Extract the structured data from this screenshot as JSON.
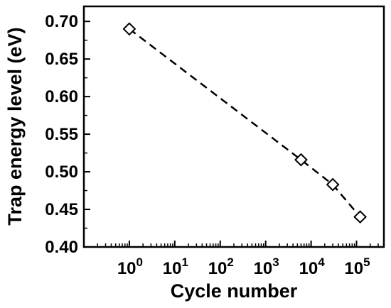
{
  "chart_data": {
    "type": "scatter",
    "title": "",
    "xlabel": "Cycle number",
    "ylabel": "Trap energy level (eV)",
    "x_scale": "log",
    "xlim": [
      0.1,
      400000
    ],
    "ylim": [
      0.4,
      0.72
    ],
    "x_ticks": [
      {
        "value": 1,
        "base": "10",
        "exp": "0"
      },
      {
        "value": 10,
        "base": "10",
        "exp": "1"
      },
      {
        "value": 100,
        "base": "10",
        "exp": "2"
      },
      {
        "value": 1000,
        "base": "10",
        "exp": "3"
      },
      {
        "value": 10000,
        "base": "10",
        "exp": "4"
      },
      {
        "value": 100000,
        "base": "10",
        "exp": "5"
      }
    ],
    "y_ticks": [
      "0.40",
      "0.45",
      "0.50",
      "0.55",
      "0.60",
      "0.65",
      "0.70"
    ],
    "grid": false,
    "marker": "diamond-open",
    "fit_line": "dashed",
    "series": [
      {
        "x": [
          1,
          6000,
          30000,
          120000
        ],
        "y": [
          0.69,
          0.516,
          0.483,
          0.44
        ]
      }
    ]
  }
}
